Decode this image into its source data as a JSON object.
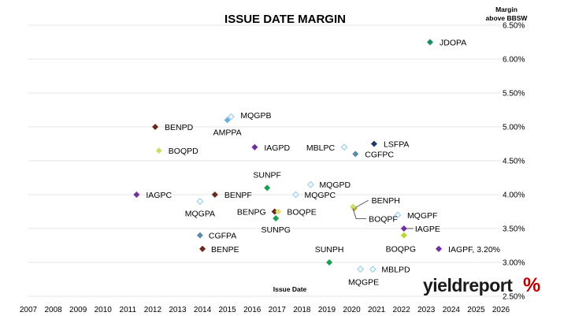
{
  "chart_data": {
    "type": "scatter",
    "title": "ISSUE DATE MARGIN",
    "ylabel": [
      "Margin",
      "above BBSW"
    ],
    "xlabel": "Issue Date",
    "xlim": [
      2007,
      2026
    ],
    "ylim": [
      2.5,
      6.5
    ],
    "x_ticks": [
      "2007",
      "2008",
      "2009",
      "2010",
      "2011",
      "2012",
      "2013",
      "2014",
      "2015",
      "2016",
      "2017",
      "2018",
      "2019",
      "2020",
      "2021",
      "2022",
      "2023",
      "2024",
      "2025",
      "2026"
    ],
    "y_ticks": [
      "2.50%",
      "3.00%",
      "3.50%",
      "4.00%",
      "4.50%",
      "5.00%",
      "5.50%",
      "6.00%",
      "6.50%"
    ],
    "grid": "horizontal",
    "points": [
      {
        "label": "JDOPA",
        "x": 2023.15,
        "y": 6.25,
        "color": "#1a8a6a",
        "filled": true
      },
      {
        "label": "MQGPB",
        "x": 2015.15,
        "y": 5.15,
        "color": "#a8d4ec",
        "filled": false
      },
      {
        "label": "AMPPA",
        "x": 2015.0,
        "y": 5.1,
        "color": "#6ab0e0",
        "filled": true
      },
      {
        "label": "BENPD",
        "x": 2012.1,
        "y": 5.0,
        "color": "#6b2a1f",
        "filled": true
      },
      {
        "label": "IAGPD",
        "x": 2016.1,
        "y": 4.7,
        "color": "#7030a0",
        "filled": true
      },
      {
        "label": "BOQPD",
        "x": 2012.25,
        "y": 4.65,
        "color": "#c8e06a",
        "filled": true
      },
      {
        "label": "MBLPC",
        "x": 2019.7,
        "y": 4.7,
        "color": "#a8d4ec",
        "filled": false
      },
      {
        "label": "LSFPA",
        "x": 2020.9,
        "y": 4.75,
        "color": "#1f3a6b",
        "filled": true
      },
      {
        "label": "CGFPC",
        "x": 2020.15,
        "y": 4.6,
        "color": "#5b8aa8",
        "filled": true
      },
      {
        "label": "SUNPF",
        "x": 2016.6,
        "y": 4.1,
        "color": "#1aa050",
        "filled": true
      },
      {
        "label": "MQGPD",
        "x": 2018.35,
        "y": 4.15,
        "color": "#a8d4ec",
        "filled": false
      },
      {
        "label": "MQGPC",
        "x": 2017.75,
        "y": 4.0,
        "color": "#a8d4ec",
        "filled": false
      },
      {
        "label": "IAGPC",
        "x": 2011.35,
        "y": 4.0,
        "color": "#7030a0",
        "filled": true
      },
      {
        "label": "BENPF",
        "x": 2014.5,
        "y": 4.0,
        "color": "#6b2a1f",
        "filled": true
      },
      {
        "label": "MQGPA",
        "x": 2013.9,
        "y": 3.9,
        "color": "#a8d4ec",
        "filled": false
      },
      {
        "label": "BENPH",
        "x": 2020.1,
        "y": 3.8,
        "color": "#c8a020",
        "filled": true
      },
      {
        "label": "BENPG",
        "x": 2016.9,
        "y": 3.75,
        "color": "#6b2a1f",
        "filled": true
      },
      {
        "label": "BOQPE",
        "x": 2017.05,
        "y": 3.75,
        "color": "#e0e070",
        "filled": true
      },
      {
        "label": "SUNPG",
        "x": 2016.95,
        "y": 3.65,
        "color": "#1aa050",
        "filled": true
      },
      {
        "label": "MQGPF",
        "x": 2021.85,
        "y": 3.7,
        "color": "#a8d4ec",
        "filled": false
      },
      {
        "label": "BOQPF",
        "x": 2020.05,
        "y": 3.82,
        "color": "#c8e06a",
        "filled": true
      },
      {
        "label": "IAGPE",
        "x": 2022.1,
        "y": 3.5,
        "color": "#7030a0",
        "filled": true
      },
      {
        "label": "BOQPG",
        "x": 2022.1,
        "y": 3.4,
        "color": "#b8d830",
        "filled": true
      },
      {
        "label": "CGFPA",
        "x": 2013.9,
        "y": 3.4,
        "color": "#5b8aa8",
        "filled": true
      },
      {
        "label": "BENPE",
        "x": 2014.0,
        "y": 3.2,
        "color": "#6b2a1f",
        "filled": true
      },
      {
        "label": "IAGPF, 3.20%",
        "x": 2023.5,
        "y": 3.2,
        "color": "#7030a0",
        "filled": true,
        "label_color": "#c00000"
      },
      {
        "label": "SUNPH",
        "x": 2019.1,
        "y": 3.0,
        "color": "#1aa050",
        "filled": true
      },
      {
        "label": "MQGPE",
        "x": 2020.35,
        "y": 2.9,
        "color": "#a8d4ec",
        "filled": false
      },
      {
        "label": "MBLPD",
        "x": 2020.85,
        "y": 2.9,
        "color": "#a8d4ec",
        "filled": false
      }
    ]
  },
  "logo": {
    "text": "yieldreport",
    "pct": "%",
    "colors": {
      "text": "#1a1a1a",
      "pct_top": "#c00000",
      "pct_bottom": "#1aa050"
    }
  }
}
